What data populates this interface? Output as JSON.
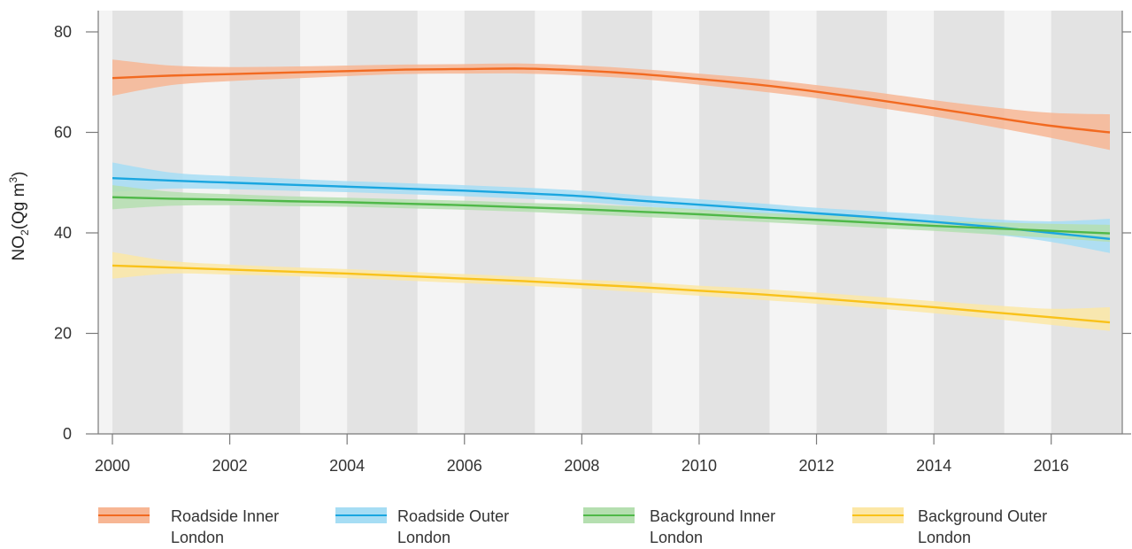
{
  "chart_data": {
    "type": "line",
    "title": "",
    "xlabel": "",
    "ylabel": {
      "main": "NO",
      "sub": "2",
      "rest": "(Qg m",
      "sup": "3",
      "close": ")"
    },
    "xlim": [
      2000,
      2017
    ],
    "ylim": [
      0,
      80
    ],
    "xticks": [
      2000,
      2002,
      2004,
      2006,
      2008,
      2010,
      2012,
      2014,
      2016
    ],
    "xtick_labels": [
      "2000",
      "2002",
      "2004",
      "2006",
      "2008",
      "2010",
      "2012",
      "2014",
      "2016"
    ],
    "yticks": [
      0,
      20,
      40,
      60,
      80
    ],
    "ytick_labels": [
      "0",
      "20",
      "40",
      "60",
      "80"
    ],
    "grid": false,
    "background": "alternating vertical bands (light gray / darker gray per year)",
    "legend_position": "bottom",
    "series": [
      {
        "name": "Roadside Inner London",
        "color": "#f26a21",
        "band_color": "#f7b694",
        "x": [
          2000,
          2001,
          2002,
          2003,
          2004,
          2005,
          2006,
          2007,
          2008,
          2009,
          2010,
          2011,
          2012,
          2013,
          2014,
          2015,
          2016,
          2017
        ],
        "y": [
          70.8,
          71.3,
          71.6,
          71.9,
          72.2,
          72.5,
          72.6,
          72.7,
          72.3,
          71.6,
          70.6,
          69.5,
          68.1,
          66.5,
          64.8,
          63.0,
          61.3,
          60.0
        ],
        "y_lower": [
          67.3,
          69.4,
          70.2,
          70.7,
          71.2,
          71.6,
          71.7,
          71.7,
          71.3,
          70.6,
          69.5,
          68.2,
          66.8,
          65.0,
          63.2,
          61.1,
          58.9,
          56.5
        ],
        "y_upper": [
          74.5,
          73.3,
          73.0,
          73.1,
          73.3,
          73.5,
          73.6,
          73.7,
          73.3,
          72.6,
          71.7,
          70.7,
          69.4,
          68.0,
          66.4,
          65.0,
          63.9,
          63.6
        ]
      },
      {
        "name": "Roadside Outer London",
        "color": "#1aa6e0",
        "band_color": "#a6ddf4",
        "x": [
          2000,
          2001,
          2002,
          2003,
          2004,
          2005,
          2006,
          2007,
          2008,
          2009,
          2010,
          2011,
          2012,
          2013,
          2014,
          2015,
          2016,
          2017
        ],
        "y": [
          50.9,
          50.4,
          50.0,
          49.6,
          49.2,
          48.8,
          48.4,
          47.9,
          47.3,
          46.4,
          45.6,
          44.8,
          43.9,
          43.1,
          42.2,
          41.2,
          40.0,
          38.8
        ],
        "y_lower": [
          48.1,
          48.8,
          48.7,
          48.4,
          48.1,
          47.7,
          47.3,
          46.8,
          46.2,
          45.3,
          44.5,
          43.7,
          42.8,
          41.9,
          40.8,
          39.7,
          38.2,
          36.0
        ],
        "y_upper": [
          54.0,
          52.0,
          51.3,
          50.8,
          50.3,
          49.9,
          49.5,
          49.0,
          48.4,
          47.5,
          46.7,
          45.9,
          45.0,
          44.3,
          43.6,
          42.7,
          42.3,
          42.8
        ]
      },
      {
        "name": "Background Inner London",
        "color": "#4fb848",
        "band_color": "#b5dfb0",
        "x": [
          2000,
          2001,
          2002,
          2003,
          2004,
          2005,
          2006,
          2007,
          2008,
          2009,
          2010,
          2011,
          2012,
          2013,
          2014,
          2015,
          2016,
          2017
        ],
        "y": [
          47.1,
          46.8,
          46.6,
          46.3,
          46.1,
          45.8,
          45.5,
          45.1,
          44.7,
          44.2,
          43.7,
          43.1,
          42.6,
          42.0,
          41.4,
          40.9,
          40.4,
          39.9
        ],
        "y_lower": [
          44.7,
          45.4,
          45.5,
          45.3,
          45.2,
          44.9,
          44.6,
          44.2,
          43.7,
          43.2,
          42.7,
          42.2,
          41.6,
          41.0,
          40.4,
          39.7,
          39.0,
          38.2
        ],
        "y_upper": [
          49.5,
          48.2,
          47.7,
          47.3,
          47.0,
          46.7,
          46.4,
          46.0,
          45.7,
          45.2,
          44.7,
          44.0,
          43.6,
          43.0,
          42.4,
          42.1,
          41.8,
          41.6
        ]
      },
      {
        "name": "Background Outer London",
        "color": "#f9c21a",
        "band_color": "#fce7a6",
        "x": [
          2000,
          2001,
          2002,
          2003,
          2004,
          2005,
          2006,
          2007,
          2008,
          2009,
          2010,
          2011,
          2012,
          2013,
          2014,
          2015,
          2016,
          2017
        ],
        "y": [
          33.5,
          33.1,
          32.7,
          32.3,
          31.9,
          31.4,
          30.9,
          30.4,
          29.8,
          29.2,
          28.5,
          27.8,
          27.0,
          26.1,
          25.2,
          24.2,
          23.2,
          22.2
        ],
        "y_lower": [
          30.9,
          31.9,
          31.7,
          31.4,
          31.0,
          30.5,
          30.0,
          29.5,
          28.9,
          28.2,
          27.5,
          26.7,
          25.9,
          25.0,
          24.0,
          22.9,
          21.7,
          20.5
        ],
        "y_upper": [
          36.2,
          34.4,
          33.7,
          33.2,
          32.8,
          32.3,
          31.8,
          31.3,
          30.7,
          30.2,
          29.5,
          28.9,
          28.1,
          27.3,
          26.4,
          25.6,
          24.9,
          25.2
        ]
      }
    ]
  },
  "legend": [
    {
      "label_line1": "Roadside Inner",
      "label_line2": "London"
    },
    {
      "label_line1": "Roadside Outer",
      "label_line2": "London"
    },
    {
      "label_line1": "Background Inner",
      "label_line2": "London"
    },
    {
      "label_line1": "Background Outer",
      "label_line2": "London"
    }
  ]
}
